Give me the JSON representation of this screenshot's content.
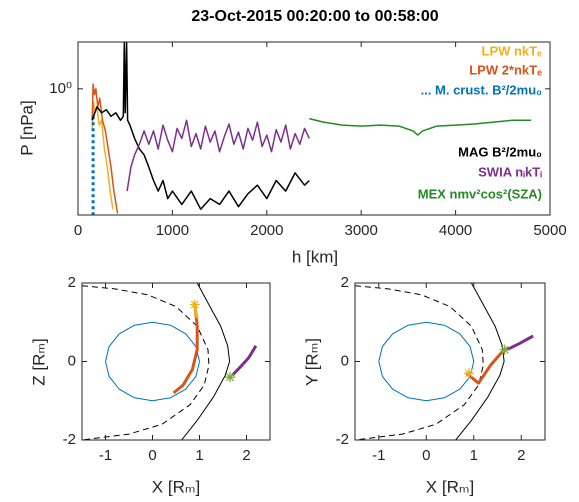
{
  "chart_data": [
    {
      "type": "line",
      "title": "23-Oct-2015 00:20:00 to 00:58:00",
      "xlabel": "h [km]",
      "ylabel": "P [nPa]",
      "xlim": [
        0,
        5000
      ],
      "xticks": [
        0,
        1000,
        2000,
        3000,
        4000,
        5000
      ],
      "ylim": [
        0.008,
        6
      ],
      "yticks": [
        {
          "value": 1,
          "label": "10⁰"
        }
      ],
      "yscale": "log",
      "box": true,
      "legend": "northeast",
      "series": [
        {
          "name": "LPW nkTₑ",
          "color": "#EDB120",
          "linewidth": 1.5,
          "x": [
            150,
            165,
            180,
            200,
            225,
            250,
            280,
            310,
            340,
            370
          ],
          "values": [
            0.2,
            0.6,
            0.4,
            0.5,
            0.25,
            0.3,
            0.1,
            0.05,
            0.02,
            0.01
          ]
        },
        {
          "name": "LPW 2*nkTₑ",
          "color": "#D95319",
          "linewidth": 1.5,
          "x": [
            150,
            160,
            175,
            190,
            210,
            230,
            260,
            290,
            320,
            350,
            380,
            420
          ],
          "values": [
            0.3,
            1.2,
            0.8,
            1.0,
            0.5,
            0.7,
            0.3,
            0.2,
            0.1,
            0.05,
            0.02,
            0.0085
          ]
        },
        {
          "name": "... M. crust. B²/2mu₀",
          "color": "#0072BD",
          "linewidth": 3,
          "linestyle": "dotted",
          "x": [
            160,
            160
          ],
          "values": [
            0.35,
            0.008
          ]
        },
        {
          "name": "MAG B²/2mu₀",
          "color": "#000000",
          "linewidth": 1.5,
          "x": [
            150,
            200,
            250,
            300,
            350,
            400,
            450,
            480,
            490,
            500,
            515,
            525,
            550,
            600,
            650,
            700,
            750,
            800,
            850,
            900,
            950,
            1000,
            1100,
            1200,
            1300,
            1400,
            1500,
            1600,
            1700,
            1800,
            1900,
            2000,
            2100,
            2200,
            2300,
            2400,
            2450
          ],
          "values": [
            0.3,
            0.5,
            0.4,
            0.45,
            0.35,
            0.4,
            0.3,
            0.35,
            6,
            0.4,
            6,
            0.3,
            0.25,
            0.15,
            0.1,
            0.08,
            0.05,
            0.03,
            0.02,
            0.03,
            0.015,
            0.02,
            0.012,
            0.02,
            0.01,
            0.015,
            0.012,
            0.02,
            0.011,
            0.018,
            0.025,
            0.015,
            0.03,
            0.02,
            0.04,
            0.025,
            0.03
          ]
        },
        {
          "name": "SWIA nᵢkTᵢ",
          "color": "#7E2F8E",
          "linewidth": 1.5,
          "x": [
            520,
            560,
            600,
            650,
            700,
            750,
            800,
            850,
            900,
            950,
            1000,
            1050,
            1100,
            1150,
            1200,
            1250,
            1300,
            1350,
            1400,
            1450,
            1500,
            1550,
            1600,
            1650,
            1700,
            1750,
            1800,
            1850,
            1900,
            1950,
            2000,
            2050,
            2100,
            2150,
            2200,
            2250,
            2300,
            2350,
            2400,
            2450
          ],
          "values": [
            0.02,
            0.05,
            0.08,
            0.12,
            0.2,
            0.12,
            0.2,
            0.1,
            0.25,
            0.14,
            0.09,
            0.22,
            0.15,
            0.3,
            0.11,
            0.18,
            0.1,
            0.24,
            0.13,
            0.2,
            0.09,
            0.16,
            0.26,
            0.12,
            0.19,
            0.1,
            0.22,
            0.14,
            0.28,
            0.11,
            0.17,
            0.09,
            0.21,
            0.13,
            0.25,
            0.1,
            0.18,
            0.12,
            0.22,
            0.15
          ]
        },
        {
          "name": "MEX nmv²cos²(SZA)",
          "color": "#228B22",
          "linewidth": 1.5,
          "x": [
            2450,
            2600,
            2800,
            3000,
            3200,
            3400,
            3550,
            3600,
            3650,
            3800,
            4000,
            4200,
            4400,
            4600,
            4800
          ],
          "values": [
            0.32,
            0.28,
            0.25,
            0.24,
            0.25,
            0.24,
            0.2,
            0.17,
            0.2,
            0.24,
            0.25,
            0.26,
            0.28,
            0.3,
            0.3
          ]
        }
      ]
    },
    {
      "type": "line",
      "xlabel": "X [Rₘ]",
      "ylabel": "Z [Rₘ]",
      "xlim": [
        -1.5,
        2.5
      ],
      "xticks": [
        -1,
        0,
        1,
        2
      ],
      "ylim": [
        -2,
        2
      ],
      "yticks": [
        -2,
        0,
        2
      ],
      "box": true,
      "series": [
        {
          "color": "#0072BD",
          "linewidth": 1,
          "x": [
            1,
            0.924,
            0.707,
            0.383,
            0,
            -0.383,
            -0.707,
            -0.924,
            -1,
            -0.924,
            -0.707,
            -0.383,
            0,
            0.383,
            0.707,
            0.924,
            1
          ],
          "values": [
            0,
            0.383,
            0.707,
            0.924,
            1,
            0.924,
            0.707,
            0.383,
            0,
            -0.383,
            -0.707,
            -0.924,
            -1,
            -0.924,
            -0.707,
            -0.383,
            0
          ]
        },
        {
          "color": "#000000",
          "linewidth": 1,
          "x": [
            0.62,
            0.95,
            1.3,
            1.55,
            1.64,
            1.6,
            1.45,
            1.2,
            0.95
          ],
          "values": [
            -2,
            -1.5,
            -0.9,
            -0.35,
            0,
            0.4,
            0.9,
            1.45,
            2
          ]
        },
        {
          "color": "#000000",
          "linewidth": 1,
          "linestyle": "dashed",
          "x": [
            -1.5,
            -0.8,
            -0.1,
            0.5,
            0.95,
            1.18,
            1.2,
            1.1,
            0.8,
            0.2,
            -0.5,
            -1.5
          ],
          "values": [
            1.93,
            1.85,
            1.7,
            1.4,
            0.9,
            0.3,
            -0.1,
            -0.6,
            -1.1,
            -1.6,
            -1.85,
            -2
          ]
        },
        {
          "color": "#D95319",
          "linewidth": 3,
          "x": [
            0.9,
            0.95,
            0.95,
            0.85,
            0.65,
            0.45
          ],
          "values": [
            1.45,
            0.9,
            0.3,
            -0.2,
            -0.6,
            -0.8
          ]
        },
        {
          "color": "#EDB120",
          "linewidth": 3,
          "x": [
            0.88,
            0.95
          ],
          "values": [
            1.5,
            1.1
          ]
        },
        {
          "color": "#7E2F8E",
          "linewidth": 3,
          "x": [
            1.7,
            1.9,
            2.05,
            2.2
          ],
          "values": [
            -0.35,
            -0.1,
            0.1,
            0.4
          ]
        },
        {
          "color": "#EDB120",
          "marker": "asterisk",
          "x": [
            0.9
          ],
          "values": [
            1.45
          ]
        },
        {
          "color": "#77AC30",
          "marker": "asterisk",
          "x": [
            1.65
          ],
          "values": [
            -0.4
          ]
        }
      ]
    },
    {
      "type": "line",
      "xlabel": "X [Rₘ]",
      "ylabel": "Y [Rₘ]",
      "xlim": [
        -1.5,
        2.5
      ],
      "xticks": [
        -1,
        0,
        1,
        2
      ],
      "ylim": [
        -2,
        2
      ],
      "yticks": [
        -2,
        0,
        2
      ],
      "box": true,
      "series": [
        {
          "color": "#0072BD",
          "linewidth": 1,
          "x": [
            1,
            0.924,
            0.707,
            0.383,
            0,
            -0.383,
            -0.707,
            -0.924,
            -1,
            -0.924,
            -0.707,
            -0.383,
            0,
            0.383,
            0.707,
            0.924,
            1
          ],
          "values": [
            0,
            0.383,
            0.707,
            0.924,
            1,
            0.924,
            0.707,
            0.383,
            0,
            -0.383,
            -0.707,
            -0.924,
            -1,
            -0.924,
            -0.707,
            -0.383,
            0
          ]
        },
        {
          "color": "#000000",
          "linewidth": 1,
          "x": [
            0.62,
            0.95,
            1.3,
            1.55,
            1.64,
            1.6,
            1.45,
            1.2,
            0.95
          ],
          "values": [
            -2,
            -1.5,
            -0.9,
            -0.35,
            0,
            0.4,
            0.9,
            1.45,
            2
          ]
        },
        {
          "color": "#000000",
          "linewidth": 1,
          "linestyle": "dashed",
          "x": [
            -1.5,
            -0.8,
            -0.1,
            0.5,
            0.95,
            1.18,
            1.2,
            1.1,
            0.8,
            0.2,
            -0.5,
            -1.5
          ],
          "values": [
            1.93,
            1.85,
            1.7,
            1.4,
            0.9,
            0.3,
            -0.1,
            -0.6,
            -1.1,
            -1.6,
            -1.85,
            -2
          ]
        },
        {
          "color": "#D95319",
          "linewidth": 3,
          "x": [
            0.85,
            1.1,
            1.35,
            1.6
          ],
          "values": [
            -0.3,
            -0.55,
            -0.1,
            0.25
          ]
        },
        {
          "color": "#7E2F8E",
          "linewidth": 3,
          "x": [
            1.7,
            1.95,
            2.25
          ],
          "values": [
            0.3,
            0.45,
            0.65
          ]
        },
        {
          "color": "#EDB120",
          "marker": "asterisk",
          "x": [
            0.9
          ],
          "values": [
            -0.3
          ]
        },
        {
          "color": "#77AC30",
          "marker": "asterisk",
          "x": [
            1.65
          ],
          "values": [
            0.3
          ]
        }
      ]
    }
  ]
}
